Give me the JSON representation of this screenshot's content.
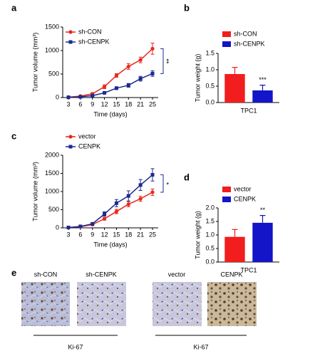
{
  "panel_labels": [
    "a",
    "b",
    "c",
    "d",
    "e"
  ],
  "chart_data": [
    {
      "type": "line",
      "ylabel": "Tumor volume (mm³)",
      "xlabel": "Time (days)",
      "categories": [
        "3",
        "6",
        "9",
        "12",
        "15",
        "18",
        "21",
        "25"
      ],
      "ylim": [
        0,
        1500
      ],
      "yticks": [
        0,
        500,
        1000,
        1500
      ],
      "series": [
        {
          "name": "sh-CON",
          "color": "#e8281e",
          "marker": "circle",
          "values": [
            10,
            30,
            80,
            230,
            470,
            660,
            800,
            1040
          ],
          "errors": [
            10,
            15,
            20,
            40,
            40,
            60,
            60,
            120
          ]
        },
        {
          "name": "sh-CENPK",
          "color": "#1c2a8f",
          "marker": "square",
          "values": [
            5,
            15,
            40,
            100,
            200,
            260,
            400,
            510
          ],
          "errors": [
            5,
            10,
            15,
            20,
            30,
            40,
            50,
            60
          ]
        }
      ],
      "annotation": "**"
    },
    {
      "type": "bar",
      "ylabel": "Tumor weight (g)",
      "categories": [
        "TPC1"
      ],
      "ylim": [
        0,
        1.5
      ],
      "yticks": [
        {
          "value": 0,
          "label": "0.0"
        },
        0.5,
        {
          "value": 1,
          "label": "1.0"
        },
        1.5
      ],
      "series": [
        {
          "name": "sh-CON",
          "color": "#f21d1d",
          "values": [
            0.87
          ],
          "errors": [
            0.2
          ]
        },
        {
          "name": "sh-CENPK",
          "color": "#1414c8",
          "values": [
            0.37
          ],
          "errors": [
            0.16
          ]
        }
      ],
      "annotation": "***"
    },
    {
      "type": "line",
      "ylabel": "Tumor volume (mm³)",
      "xlabel": "Time (days)",
      "categories": [
        "3",
        "6",
        "9",
        "12",
        "15",
        "18",
        "21",
        "25"
      ],
      "ylim": [
        0,
        2000
      ],
      "yticks": [
        0,
        500,
        1000,
        1500,
        2000
      ],
      "series": [
        {
          "name": "vector",
          "color": "#e8281e",
          "marker": "circle",
          "values": [
            10,
            30,
            90,
            250,
            450,
            650,
            800,
            980
          ],
          "errors": [
            10,
            15,
            20,
            40,
            60,
            70,
            70,
            90
          ]
        },
        {
          "name": "CENPK",
          "color": "#1c2a8f",
          "marker": "square",
          "values": [
            10,
            40,
            110,
            380,
            680,
            880,
            1180,
            1460
          ],
          "errors": [
            10,
            15,
            30,
            60,
            100,
            140,
            150,
            170
          ]
        }
      ],
      "annotation": "*"
    },
    {
      "type": "bar",
      "ylabel": "Tumor weight (g)",
      "categories": [
        "TPC1"
      ],
      "ylim": [
        0,
        2
      ],
      "yticks": [
        {
          "value": 0,
          "label": "0.0"
        },
        0.5,
        {
          "value": 1,
          "label": "1.0"
        },
        1.5,
        {
          "value": 2,
          "label": "2.0"
        }
      ],
      "series": [
        {
          "name": "vector",
          "color": "#f21d1d",
          "values": [
            0.93
          ],
          "errors": [
            0.27
          ]
        },
        {
          "name": "CENPK",
          "color": "#1414c8",
          "values": [
            1.45
          ],
          "errors": [
            0.27
          ]
        }
      ],
      "annotation": "**"
    }
  ],
  "ihc": {
    "images": [
      "sh-CON",
      "sh-CENPK",
      "vector",
      "CENPK"
    ],
    "markers": [
      "Ki-67",
      "Ki-67"
    ]
  }
}
